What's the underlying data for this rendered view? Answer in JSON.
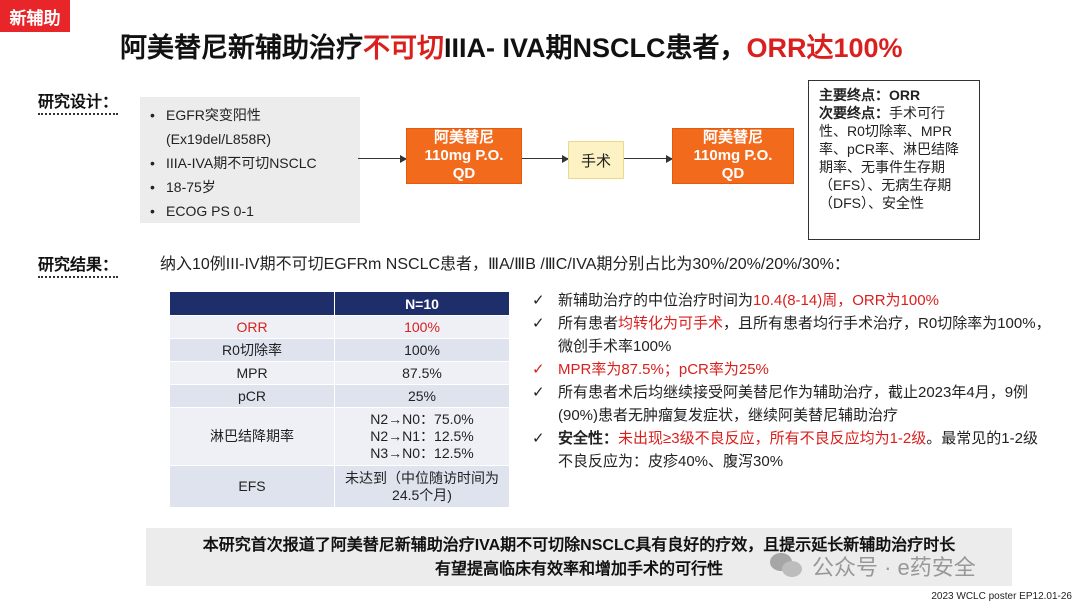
{
  "tag": "新辅助",
  "title": {
    "part1": "阿美替尼新辅助治疗",
    "part2": "不可切",
    "part3": "IIIA- IVA期NSCLC患者，",
    "part4": "ORR达100%"
  },
  "design": {
    "label": "研究设计：",
    "criteria": [
      "EGFR突变阳性",
      "(Ex19del/L858R)",
      "IIIA-IVA期不可切NSCLC",
      "18-75岁",
      "ECOG PS 0-1"
    ],
    "drug1": [
      "阿美替尼",
      "110mg P.O.",
      "QD"
    ],
    "surgery": "手术",
    "drug2": [
      "阿美替尼",
      "110mg P.O.",
      "QD"
    ],
    "primary_label": "主要终点：",
    "primary_value": "ORR",
    "secondary_label": "次要终点：",
    "secondary_value": "手术可行性、R0切除率、MPR率、pCR率、淋巴结降期率、无事件生存期（EFS）、无病生存期（DFS）、安全性"
  },
  "results": {
    "label": "研究结果：",
    "summary": "纳入10例III-IV期不可切EGFRm NSCLC患者，ⅢA/ⅢB /ⅢC/IVA期分别占比为30%/20%/20%/30%：",
    "table": {
      "header": "N=10",
      "rows": [
        {
          "label": "ORR",
          "value": "100%"
        },
        {
          "label": "R0切除率",
          "value": "100%"
        },
        {
          "label": "MPR",
          "value": "87.5%"
        },
        {
          "label": "pCR",
          "value": "25%"
        },
        {
          "label": "淋巴结降期率",
          "value1": "N2→N0：75.0%",
          "value2": "N2→N1：12.5%",
          "value3": "N3→N0：12.5%"
        },
        {
          "label": "EFS",
          "value1": "未达到（中位随访时间为",
          "value2": "24.5个月)"
        }
      ]
    },
    "findings": {
      "check": "✓",
      "f1_a": "新辅助治疗的中位治疗时间为",
      "f1_b": "10.4(8-14)周，ORR为100%",
      "f2_a": "所有患者",
      "f2_b": "均转化为可手术",
      "f2_c": "，且所有患者均行手术治疗，R0切除率为100%，微创手术率100%",
      "f3": "MPR率为87.5%；pCR率为25%",
      "f4": "所有患者术后均继续接受阿美替尼作为辅助治疗，截止2023年4月，9例(90%)患者无肿瘤复发症状，继续阿美替尼辅助治疗",
      "f5_label": "安全性：",
      "f5_a": "未出现≥3级不良反应，所有不良反应均为1-2级",
      "f5_b": "。最常见的1-2级不良反应为：皮疹40%、腹泻30%"
    }
  },
  "conclusion": {
    "line1": "本研究首次报道了阿美替尼新辅助治疗IVA期不可切除NSCLC具有良好的疗效，且提示延长新辅助治疗时长",
    "line2": "有望提高临床有效率和增加手术的可行性"
  },
  "watermark": "公众号 · e药安全",
  "footer": "2023 WCLC poster EP12.01-26",
  "colors": {
    "accent_red": "#d9201e",
    "orange": "#f26b1d",
    "navy": "#1e2e6b"
  }
}
